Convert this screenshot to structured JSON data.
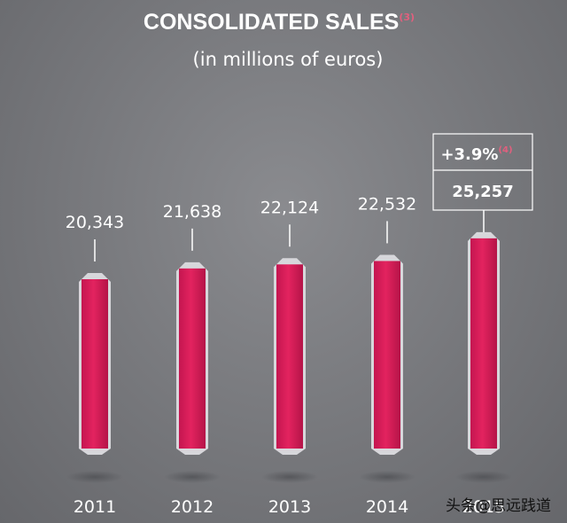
{
  "chart_data": {
    "type": "bar",
    "title": "CONSOLIDATED SALES",
    "title_footnote": "(3)",
    "subtitle": "(in millions of euros)",
    "categories": [
      "2011",
      "2012",
      "2013",
      "2014",
      "2015"
    ],
    "values": [
      20343,
      21638,
      22124,
      22532,
      25257
    ],
    "value_labels": [
      "20,343",
      "21,638",
      "22,124",
      "22,532",
      "25,257"
    ],
    "growth_label": "+3.9%",
    "growth_footnote": "(4)",
    "bar_color": "#e0215f",
    "grid": false,
    "legend": "none"
  },
  "watermark": {
    "prefix": "头条",
    "handle": "@思远践道"
  }
}
